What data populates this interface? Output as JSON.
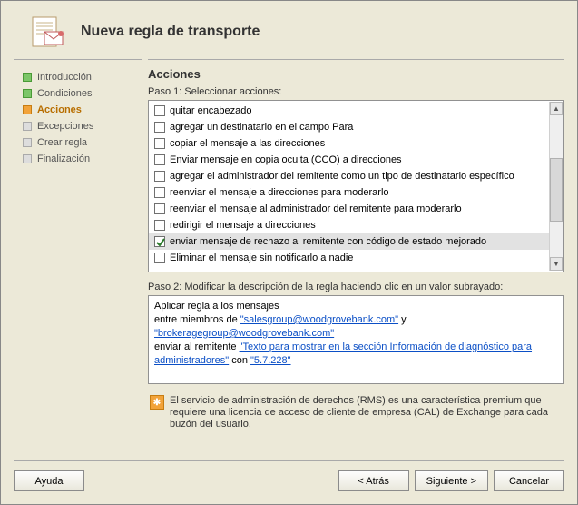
{
  "header": {
    "title": "Nueva regla de transporte"
  },
  "sidebar": {
    "items": [
      {
        "label": "Introducción",
        "state": "done"
      },
      {
        "label": "Condiciones",
        "state": "done"
      },
      {
        "label": "Acciones",
        "state": "current"
      },
      {
        "label": "Excepciones",
        "state": "pending"
      },
      {
        "label": "Crear regla",
        "state": "pending"
      },
      {
        "label": "Finalización",
        "state": "pending"
      }
    ]
  },
  "main": {
    "section_title": "Acciones",
    "step1_label": "Paso 1: Seleccionar acciones:",
    "action_list": [
      {
        "label": "quitar encabezado",
        "checked": false,
        "selected": false
      },
      {
        "label": "agregar un destinatario en el campo Para",
        "checked": false,
        "selected": false
      },
      {
        "label": "copiar el mensaje a las direcciones",
        "checked": false,
        "selected": false
      },
      {
        "label": "Enviar mensaje en copia oculta (CCO) a direcciones",
        "checked": false,
        "selected": false
      },
      {
        "label": "agregar el administrador del remitente como un tipo de destinatario específico",
        "checked": false,
        "selected": false
      },
      {
        "label": "reenviar el mensaje a direcciones para moderarlo",
        "checked": false,
        "selected": false
      },
      {
        "label": "reenviar el mensaje al administrador del remitente para moderarlo",
        "checked": false,
        "selected": false
      },
      {
        "label": "redirigir el mensaje a direcciones",
        "checked": false,
        "selected": false
      },
      {
        "label": "enviar mensaje de rechazo al remitente con código de estado mejorado",
        "checked": true,
        "selected": true
      },
      {
        "label": "Eliminar el mensaje sin notificarlo a nadie",
        "checked": false,
        "selected": false
      }
    ],
    "step2_label": "Paso 2: Modificar la descripción de la regla haciendo clic en un valor subrayado:",
    "description": {
      "line1_prefix": "Aplicar regla a los mensajes",
      "line2_prefix": "entre miembros de ",
      "link_group1": "\"salesgroup@woodgrovebank.com\"",
      "line2_mid": " y ",
      "link_group2": "\"brokeragegroup@woodgrovebank.com\"",
      "line3_prefix": "enviar al remitente ",
      "link_text": "\"Texto para mostrar en la sección Información de diagnóstico para administradores\"",
      "line3_mid": " con ",
      "link_code": "\"5.7.228\""
    },
    "notice": {
      "text": "El servicio de administración de derechos (RMS) es una característica premium que requiere una licencia de acceso de cliente de empresa (CAL) de Exchange para cada buzón del usuario."
    }
  },
  "footer": {
    "help": "Ayuda",
    "back": "< Atrás",
    "next": "Siguiente >",
    "cancel": "Cancelar"
  },
  "colors": {
    "window_bg": "#ece9d8",
    "accent_orange": "#f2a33a",
    "accent_green": "#7cc668",
    "link": "#0b4fc6",
    "selected_row": "#e2e2e2"
  }
}
